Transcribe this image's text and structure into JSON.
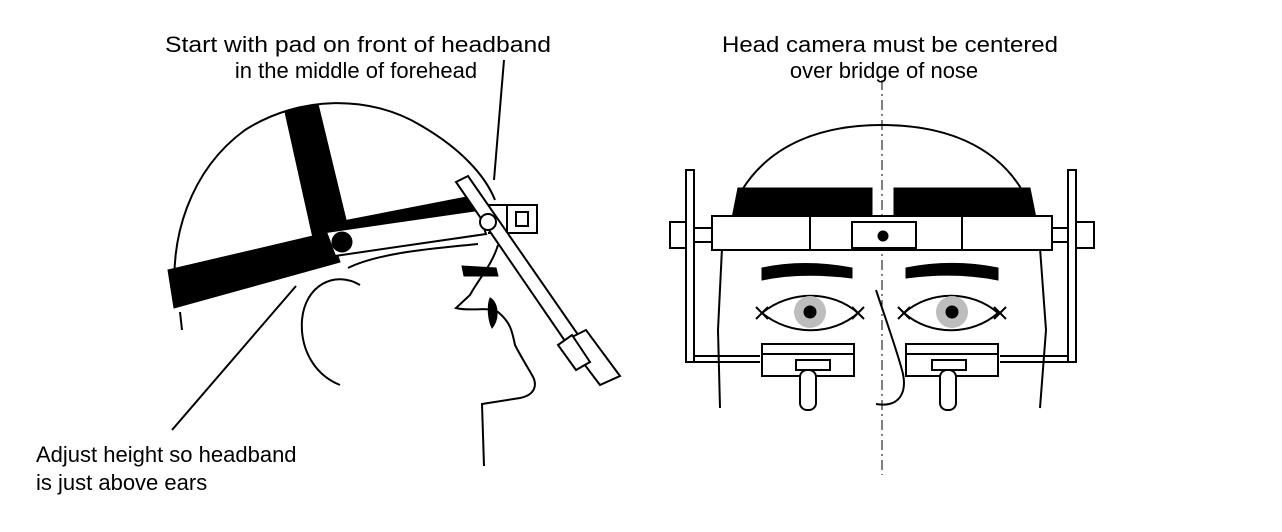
{
  "labels": {
    "pad_line1": "Start with pad on front of headband",
    "pad_line2": "in the middle of forehead",
    "camera_line1": "Head camera must be centered",
    "camera_line2": "over bridge of nose",
    "height_line1": "Adjust height so headband",
    "height_line2": "is just above ears"
  },
  "colors": {
    "ink": "#000000",
    "iris": "#bdbdbd",
    "background": "#ffffff"
  }
}
